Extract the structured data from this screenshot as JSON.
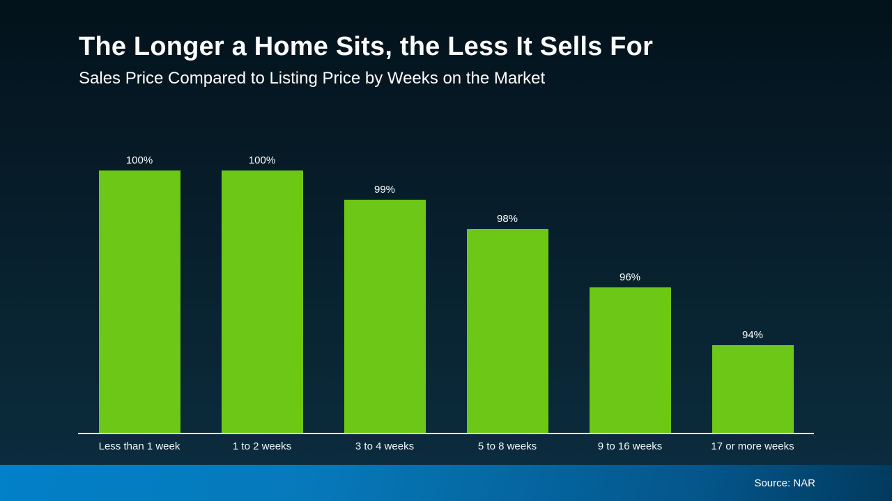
{
  "header": {
    "title": "The Longer a Home Sits, the Less It Sells For",
    "subtitle": "Sales Price Compared to Listing Price by Weeks on the Market"
  },
  "footer": {
    "source": "Source: NAR"
  },
  "colors": {
    "bar_green": "#6cc716",
    "background_top": "#03121b",
    "background_bottom": "#0b2c3e",
    "footer_gradient_left": "#0280c8",
    "footer_gradient_right": "#013a5e",
    "axis_line": "#e3ebf1",
    "text": "#ffffff"
  },
  "chart_data": {
    "type": "bar",
    "title": "The Longer a Home Sits, the Less It Sells For",
    "subtitle": "Sales Price Compared to Listing Price by Weeks on the Market",
    "categories": [
      "Less than 1 week",
      "1 to 2 weeks",
      "3 to 4 weeks",
      "5 to 8 weeks",
      "9 to 16 weeks",
      "17 or more weeks"
    ],
    "values": [
      100,
      100,
      99,
      98,
      96,
      94
    ],
    "value_labels": [
      "100%",
      "100%",
      "99%",
      "98%",
      "96%",
      "94%"
    ],
    "xlabel": "",
    "ylabel": "",
    "ylim": [
      91,
      100
    ],
    "grid": false,
    "legend": false,
    "data_labels": "above bars",
    "bar_color": "#6cc716",
    "source": "Source: NAR"
  }
}
